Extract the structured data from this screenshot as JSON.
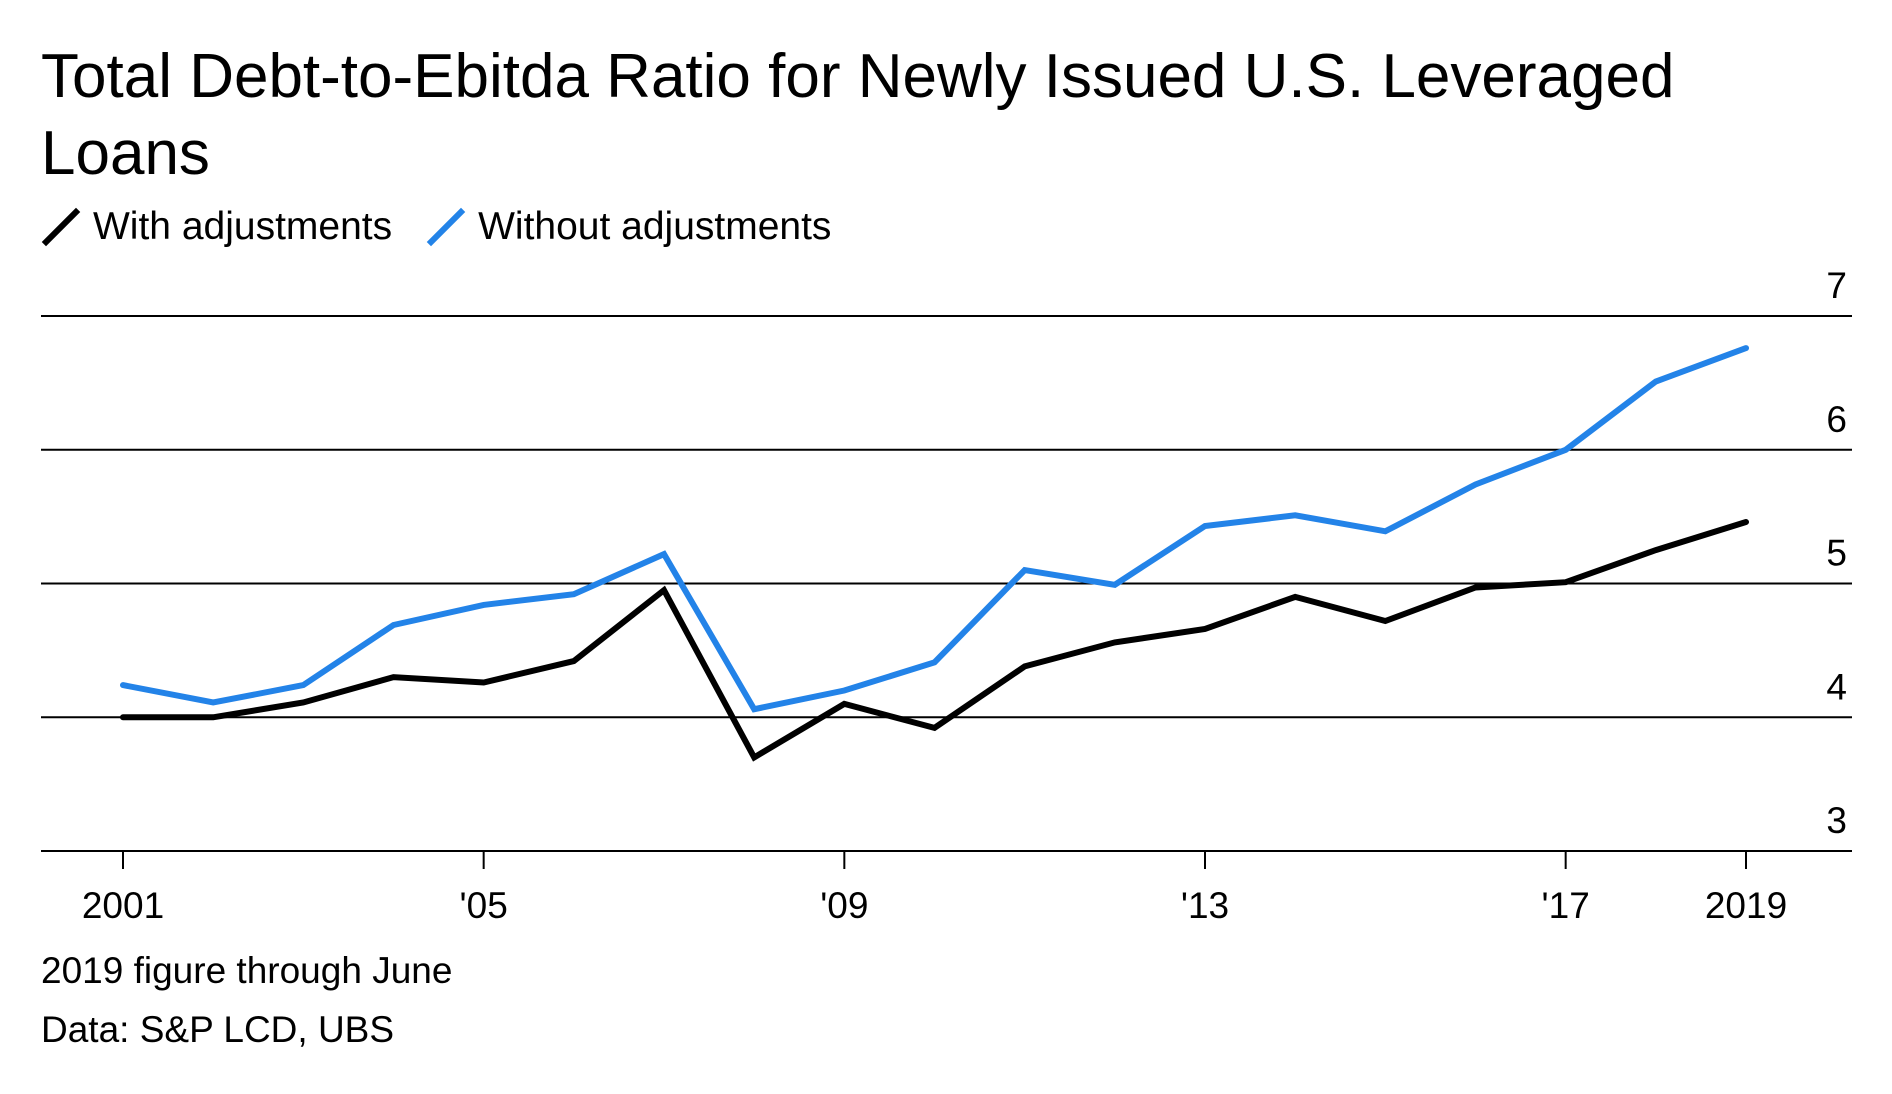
{
  "chart_data": {
    "type": "line",
    "title": "Total Debt-to-Ebitda Ratio for Newly Issued U.S. Leveraged Loans",
    "x": [
      2001,
      2002,
      2003,
      2004,
      2005,
      2006,
      2007,
      2008,
      2009,
      2010,
      2011,
      2012,
      2013,
      2014,
      2015,
      2016,
      2017,
      2018,
      2019
    ],
    "series": [
      {
        "name": "With adjustments",
        "color": "#000000",
        "values": [
          4.0,
          4.0,
          4.11,
          4.3,
          4.26,
          4.42,
          4.95,
          3.7,
          4.1,
          3.92,
          4.38,
          4.56,
          4.66,
          4.9,
          4.72,
          4.97,
          5.01,
          5.25,
          5.46
        ]
      },
      {
        "name": "Without adjustments",
        "color": "#2383e8",
        "values": [
          4.24,
          4.11,
          4.24,
          4.69,
          4.84,
          4.92,
          5.22,
          4.06,
          4.2,
          4.41,
          5.1,
          4.99,
          5.43,
          5.51,
          5.39,
          5.74,
          6.0,
          6.51,
          6.76
        ]
      }
    ],
    "ylim": [
      3,
      7
    ],
    "yticks": [
      {
        "value": 7,
        "label": "7"
      },
      {
        "value": 6,
        "label": "6"
      },
      {
        "value": 5,
        "label": "5"
      },
      {
        "value": 4,
        "label": "4"
      },
      {
        "value": 3,
        "label": "3"
      }
    ],
    "xticks": [
      {
        "value": 2001,
        "label": "2001"
      },
      {
        "value": 2005,
        "label": "'05"
      },
      {
        "value": 2009,
        "label": "'09"
      },
      {
        "value": 2013,
        "label": "'13"
      },
      {
        "value": 2017,
        "label": "'17"
      },
      {
        "value": 2019,
        "label": "2019"
      }
    ],
    "grid": true,
    "legend": "top-left",
    "y_axis_side": "right"
  },
  "notes": {
    "footnote": "2019 figure through June",
    "source": "Data: S&P LCD, UBS"
  }
}
